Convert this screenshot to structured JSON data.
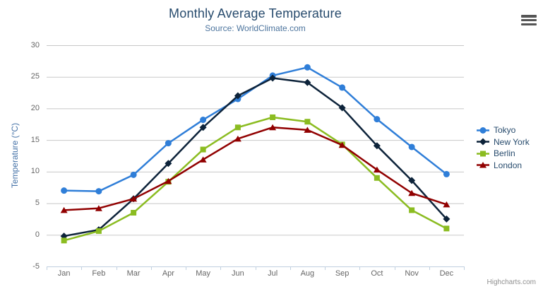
{
  "chart_data": {
    "type": "line",
    "title": "Monthly Average Temperature",
    "subtitle": "Source: WorldClimate.com",
    "categories": [
      "Jan",
      "Feb",
      "Mar",
      "Apr",
      "May",
      "Jun",
      "Jul",
      "Aug",
      "Sep",
      "Oct",
      "Nov",
      "Dec"
    ],
    "xlabel": "",
    "ylabel": "Temperature (°C)",
    "ylim": [
      -5,
      30
    ],
    "yticks": [
      -5,
      0,
      5,
      10,
      15,
      20,
      25,
      30
    ],
    "grid": true,
    "legend_position": "right",
    "series": [
      {
        "name": "Tokyo",
        "color": "#2f7ed8",
        "marker": "circle",
        "values": [
          7.0,
          6.9,
          9.5,
          14.5,
          18.2,
          21.5,
          25.2,
          26.5,
          23.3,
          18.3,
          13.9,
          9.6
        ]
      },
      {
        "name": "New York",
        "color": "#0d233a",
        "marker": "diamond",
        "values": [
          -0.2,
          0.8,
          5.7,
          11.3,
          17.0,
          22.0,
          24.8,
          24.1,
          20.1,
          14.1,
          8.6,
          2.5
        ]
      },
      {
        "name": "Berlin",
        "color": "#8bbc21",
        "marker": "square",
        "values": [
          -0.9,
          0.6,
          3.5,
          8.4,
          13.5,
          17.0,
          18.6,
          17.9,
          14.3,
          9.0,
          3.9,
          1.0
        ]
      },
      {
        "name": "London",
        "color": "#910000",
        "marker": "triangle",
        "values": [
          3.9,
          4.2,
          5.7,
          8.5,
          11.9,
          15.2,
          17.0,
          16.6,
          14.2,
          10.3,
          6.6,
          4.8
        ]
      }
    ],
    "credits": "Highcharts.com"
  },
  "colors": {
    "grid": "#c8c8c8",
    "axis_line": "#c0d0e0",
    "tick_label": "#666666",
    "title": "#274b6d",
    "subtitle": "#4d759e",
    "axis_title": "#4572a7",
    "legend_text": "#274b6d",
    "credits": "#909090"
  }
}
